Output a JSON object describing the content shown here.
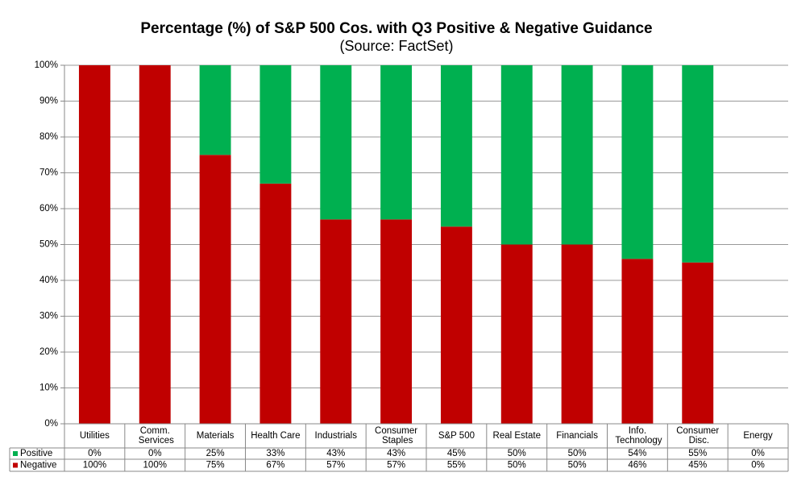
{
  "chart_data": {
    "type": "stacked-bar",
    "title": "Percentage (%) of S&P 500 Cos. with Q3 Positive & Negative Guidance",
    "subtitle": "(Source: FactSet)",
    "categories": [
      "Utilities",
      "Comm. Services",
      "Materials",
      "Health Care",
      "Industrials",
      "Consumer Staples",
      "S&P 500",
      "Real Estate",
      "Financials",
      "Info. Technology",
      "Consumer Disc.",
      "Energy"
    ],
    "series": [
      {
        "name": "Negative",
        "color": "#c00000",
        "values": [
          100,
          100,
          75,
          67,
          57,
          57,
          55,
          50,
          50,
          46,
          45,
          0
        ],
        "value_labels": [
          "100%",
          "100%",
          "75%",
          "67%",
          "57%",
          "57%",
          "55%",
          "50%",
          "50%",
          "46%",
          "45%",
          "0%"
        ]
      },
      {
        "name": "Positive",
        "color": "#00b050",
        "values": [
          0,
          0,
          25,
          33,
          43,
          43,
          45,
          50,
          50,
          54,
          55,
          0
        ],
        "value_labels": [
          "0%",
          "0%",
          "25%",
          "33%",
          "43%",
          "43%",
          "45%",
          "50%",
          "50%",
          "54%",
          "55%",
          "0%"
        ]
      }
    ],
    "ylim": [
      0,
      100
    ],
    "yticks": [
      {
        "value": 0,
        "label": "0%"
      },
      {
        "value": 10,
        "label": "10%"
      },
      {
        "value": 20,
        "label": "20%"
      },
      {
        "value": 30,
        "label": "30%"
      },
      {
        "value": 40,
        "label": "40%"
      },
      {
        "value": 50,
        "label": "50%"
      },
      {
        "value": 60,
        "label": "60%"
      },
      {
        "value": 70,
        "label": "70%"
      },
      {
        "value": 80,
        "label": "80%"
      },
      {
        "value": 90,
        "label": "90%"
      },
      {
        "value": 100,
        "label": "100%"
      }
    ],
    "grid": true
  }
}
